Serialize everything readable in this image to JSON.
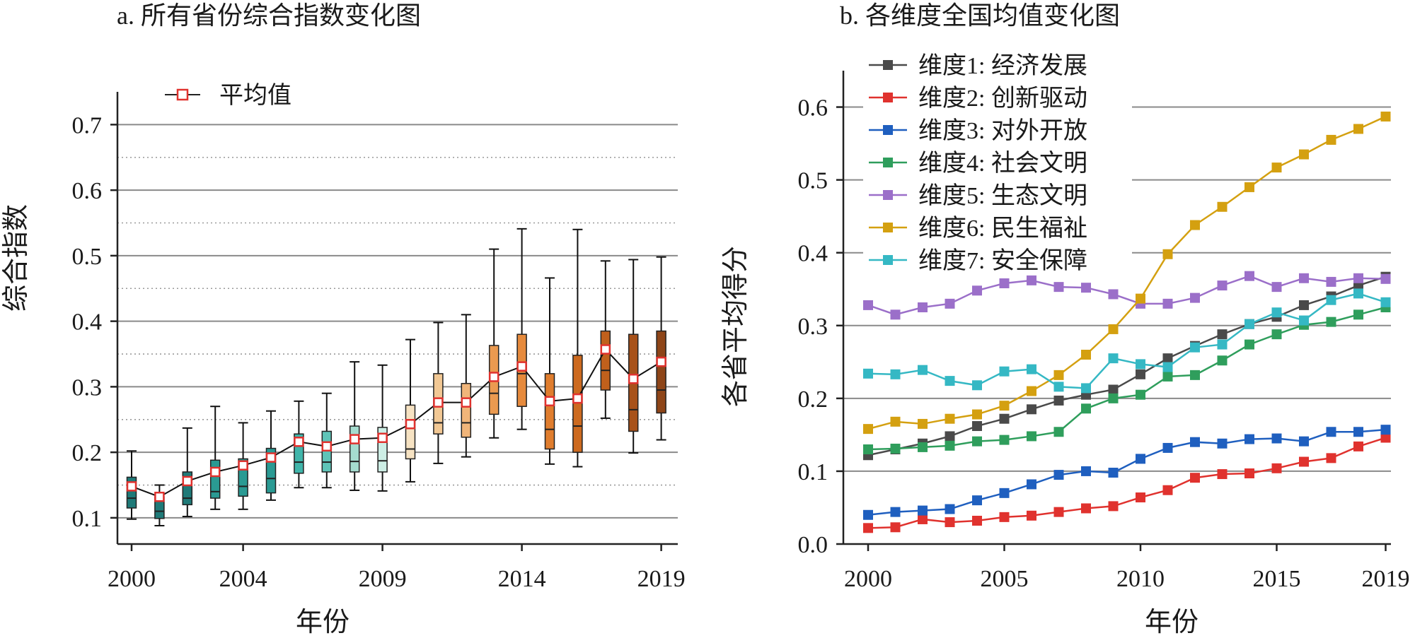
{
  "chart_data": [
    {
      "type": "box",
      "title": "a. 所有省份综合指数变化图",
      "xlabel": "年份",
      "ylabel": "综合指数",
      "ylim": [
        0.06,
        0.75
      ],
      "yticks": [
        0.1,
        0.2,
        0.3,
        0.4,
        0.5,
        0.6,
        0.7
      ],
      "xtick_labels": [
        "2000",
        "2004",
        "2009",
        "2014",
        "2019"
      ],
      "xtick_years": [
        2000,
        2004,
        2009,
        2014,
        2019
      ],
      "grid": "solid at ticks, dotted between",
      "legend": {
        "label": "平均值",
        "position": "top-left"
      },
      "years": [
        2000,
        2001,
        2002,
        2003,
        2004,
        2005,
        2006,
        2007,
        2008,
        2009,
        2010,
        2011,
        2012,
        2013,
        2014,
        2015,
        2016,
        2017,
        2018,
        2019
      ],
      "whisker_low": [
        0.098,
        0.088,
        0.102,
        0.113,
        0.113,
        0.127,
        0.146,
        0.146,
        0.142,
        0.141,
        0.155,
        0.183,
        0.193,
        0.222,
        0.235,
        0.182,
        0.178,
        0.252,
        0.199,
        0.219
      ],
      "q1": [
        0.115,
        0.099,
        0.12,
        0.13,
        0.133,
        0.138,
        0.168,
        0.17,
        0.17,
        0.17,
        0.19,
        0.228,
        0.223,
        0.258,
        0.27,
        0.205,
        0.2,
        0.295,
        0.232,
        0.26
      ],
      "median": [
        0.13,
        0.11,
        0.13,
        0.14,
        0.148,
        0.16,
        0.185,
        0.185,
        0.186,
        0.187,
        0.205,
        0.245,
        0.245,
        0.29,
        0.32,
        0.235,
        0.24,
        0.325,
        0.265,
        0.295
      ],
      "q3": [
        0.162,
        0.132,
        0.17,
        0.188,
        0.19,
        0.206,
        0.228,
        0.232,
        0.24,
        0.238,
        0.272,
        0.32,
        0.305,
        0.363,
        0.38,
        0.32,
        0.348,
        0.385,
        0.38,
        0.385
      ],
      "whisker_high": [
        0.202,
        0.15,
        0.237,
        0.27,
        0.245,
        0.263,
        0.278,
        0.29,
        0.338,
        0.333,
        0.372,
        0.398,
        0.41,
        0.51,
        0.541,
        0.466,
        0.54,
        0.492,
        0.494,
        0.498
      ],
      "mean": [
        0.148,
        0.132,
        0.156,
        0.17,
        0.18,
        0.192,
        0.216,
        0.209,
        0.22,
        0.222,
        0.243,
        0.276,
        0.276,
        0.315,
        0.331,
        0.278,
        0.282,
        0.357,
        0.312,
        0.338
      ],
      "box_colors": [
        "#1f7a78",
        "#1f7a78",
        "#1f7a78",
        "#2a9a93",
        "#2a9a93",
        "#2a9a93",
        "#40b5aa",
        "#5fc4b8",
        "#a5dccf",
        "#cdeee5",
        "#f6e2c2",
        "#f2c894",
        "#f0b57a",
        "#eb9a50",
        "#e68a3c",
        "#e07d2e",
        "#cd6a1f",
        "#c0601c",
        "#a8521a",
        "#8e4518"
      ],
      "mean_color": "#e0322e"
    },
    {
      "type": "line",
      "title": "b. 各维度全国均值变化图",
      "xlabel": "年份",
      "ylabel": "各省平均得分",
      "ylim": [
        0.0,
        0.65
      ],
      "yticks": [
        0.0,
        0.1,
        0.2,
        0.3,
        0.4,
        0.5,
        0.6
      ],
      "xtick_labels": [
        "2000",
        "2005",
        "2010",
        "2015",
        "2019"
      ],
      "xtick_years": [
        2000,
        2005,
        2010,
        2015,
        2019
      ],
      "grid": "solid at ticks",
      "legend_position": "top-left",
      "x": [
        2000,
        2001,
        2002,
        2003,
        2004,
        2005,
        2006,
        2007,
        2008,
        2009,
        2010,
        2011,
        2012,
        2013,
        2014,
        2015,
        2016,
        2017,
        2018,
        2019
      ],
      "series": [
        {
          "name": "维度1: 经济发展",
          "color": "#4a4a4a",
          "values": [
            0.122,
            0.13,
            0.138,
            0.148,
            0.162,
            0.172,
            0.185,
            0.197,
            0.205,
            0.212,
            0.233,
            0.255,
            0.272,
            0.288,
            0.302,
            0.312,
            0.328,
            0.34,
            0.355,
            0.367
          ]
        },
        {
          "name": "维度2: 创新驱动",
          "color": "#e0322e",
          "values": [
            0.022,
            0.023,
            0.034,
            0.03,
            0.032,
            0.037,
            0.039,
            0.044,
            0.049,
            0.052,
            0.064,
            0.074,
            0.091,
            0.096,
            0.097,
            0.104,
            0.113,
            0.118,
            0.134,
            0.146
          ]
        },
        {
          "name": "维度3: 对外开放",
          "color": "#1f5fbf",
          "values": [
            0.04,
            0.044,
            0.046,
            0.048,
            0.06,
            0.07,
            0.082,
            0.095,
            0.1,
            0.098,
            0.117,
            0.132,
            0.14,
            0.138,
            0.144,
            0.145,
            0.141,
            0.154,
            0.154,
            0.157
          ]
        },
        {
          "name": "维度4: 社会文明",
          "color": "#2f9e5c",
          "values": [
            0.13,
            0.131,
            0.133,
            0.135,
            0.141,
            0.143,
            0.148,
            0.154,
            0.186,
            0.2,
            0.205,
            0.23,
            0.232,
            0.252,
            0.274,
            0.288,
            0.301,
            0.305,
            0.315,
            0.325
          ]
        },
        {
          "name": "维度5: 生态文明",
          "color": "#9b6fc9",
          "values": [
            0.328,
            0.315,
            0.325,
            0.33,
            0.348,
            0.358,
            0.362,
            0.353,
            0.352,
            0.343,
            0.33,
            0.33,
            0.338,
            0.355,
            0.368,
            0.353,
            0.365,
            0.36,
            0.365,
            0.364
          ]
        },
        {
          "name": "维度6: 民生福祉",
          "color": "#d4a010",
          "values": [
            0.158,
            0.168,
            0.165,
            0.172,
            0.178,
            0.19,
            0.21,
            0.232,
            0.26,
            0.295,
            0.337,
            0.398,
            0.438,
            0.463,
            0.49,
            0.517,
            0.535,
            0.555,
            0.57,
            0.587
          ]
        },
        {
          "name": "维度7: 安全保障",
          "color": "#35b8c4",
          "values": [
            0.234,
            0.233,
            0.239,
            0.224,
            0.218,
            0.237,
            0.24,
            0.216,
            0.214,
            0.255,
            0.247,
            0.243,
            0.27,
            0.274,
            0.302,
            0.318,
            0.307,
            0.335,
            0.344,
            0.332
          ]
        }
      ]
    }
  ]
}
